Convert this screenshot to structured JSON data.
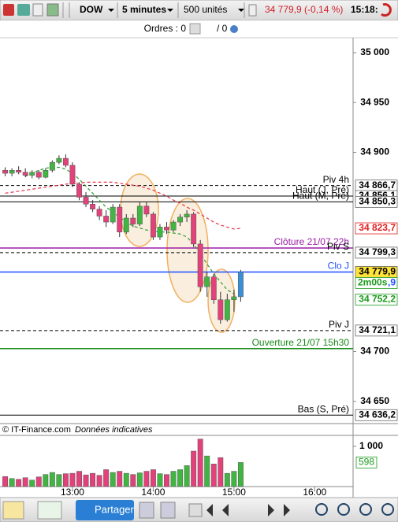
{
  "toolbar": {
    "symbol": "DOW",
    "interval": "5 minutes",
    "units": "500 unités",
    "quote": "34 779,9 (-0,14 %)",
    "time": "15:18:"
  },
  "orders": {
    "label": "Ordres : 0",
    "pending": "/ 0"
  },
  "chart_data": {
    "type": "candlestick",
    "open": [
      34882,
      34879,
      34882,
      34880,
      34877,
      34880,
      34875,
      34882,
      34890,
      34894,
      34887,
      34868,
      34855,
      34848,
      34843,
      34836,
      34830,
      34845,
      34820,
      34834,
      34828,
      34846,
      34838,
      34815,
      34825,
      34822,
      34830,
      34835,
      34838,
      34808,
      34765,
      34775,
      34752,
      34732,
      34752,
      34755
    ],
    "high": [
      34885,
      34884,
      34886,
      34884,
      34882,
      34882,
      34884,
      34892,
      34897,
      34898,
      34890,
      34870,
      34860,
      34852,
      34846,
      34842,
      34848,
      34848,
      34838,
      34838,
      34850,
      34850,
      34840,
      34828,
      34830,
      34832,
      34838,
      34842,
      34840,
      34812,
      34780,
      34778,
      34760,
      34758,
      34762,
      34782
    ],
    "low": [
      34876,
      34876,
      34878,
      34875,
      34874,
      34873,
      34874,
      34880,
      34888,
      34885,
      34865,
      34852,
      34845,
      34840,
      34832,
      34825,
      34828,
      34815,
      34818,
      34825,
      34826,
      34835,
      34812,
      34812,
      34818,
      34820,
      34826,
      34830,
      34805,
      34760,
      34755,
      34748,
      34728,
      34730,
      34740,
      34750
    ],
    "close": [
      34879,
      34882,
      34880,
      34877,
      34880,
      34875,
      34882,
      34890,
      34894,
      34887,
      34868,
      34855,
      34848,
      34843,
      34836,
      34830,
      34845,
      34820,
      34834,
      34828,
      34846,
      34838,
      34815,
      34825,
      34822,
      34830,
      34835,
      34838,
      34808,
      34765,
      34775,
      34752,
      34732,
      34752,
      34755,
      34779.9
    ],
    "up_color": "#41b541",
    "down_color": "#e2417a",
    "last_color": "#3a8fd8",
    "xlim": [
      -0.77,
      51.7
    ],
    "xticks": [
      {
        "value": 10,
        "label": "13:00"
      },
      {
        "value": 22,
        "label": "14:00"
      },
      {
        "value": 34,
        "label": "15:00"
      },
      {
        "value": 46,
        "label": "16:00"
      }
    ],
    "ylim": [
      34627.7,
      35015
    ],
    "yticks": [
      {
        "value": 35000,
        "label": "35 000"
      },
      {
        "value": 34950,
        "label": "34 950"
      },
      {
        "value": 34900,
        "label": "34 900"
      },
      {
        "value": 34700,
        "label": "34 700"
      },
      {
        "value": 34650,
        "label": "34 650"
      }
    ],
    "levels": [
      {
        "label": "Piv 4h",
        "value": 34866.7,
        "style": "dashed",
        "color": "#000000"
      },
      {
        "label": "Haut (J, Pré)",
        "value": 34856.1,
        "style": "solid",
        "color": "#000000"
      },
      {
        "label": "Haut (M, Pré)",
        "value": 34850.3,
        "style": "solid",
        "color": "#000000"
      },
      {
        "label": "Clôture 21/07 22h",
        "value": 34804,
        "style": "solid",
        "color": "#9b1fa8"
      },
      {
        "label": "Piv S",
        "value": 34799.3,
        "style": "dashed",
        "color": "#000000"
      },
      {
        "label": "Clo J",
        "value": 34779.9,
        "style": "solid",
        "color": "#1f4fff"
      },
      {
        "label": "Piv J",
        "value": 34721.1,
        "style": "dashed",
        "color": "#000000"
      },
      {
        "label": "Ouverture 21/07 15h30",
        "value": 34703,
        "style": "solid",
        "color": "#1a8a1a"
      },
      {
        "label": "Bas (S, Pré)",
        "value": 34636.2,
        "style": "solid",
        "color": "#000000"
      }
    ],
    "price_labels": [
      {
        "value": 34866.7,
        "label": "34 866,7",
        "bg": "#ffffff",
        "fg": "#000000"
      },
      {
        "value": 34856.1,
        "label": "34 856,1",
        "bg": "#ffffff",
        "fg": "#000000"
      },
      {
        "value": 34850.3,
        "label": "34 850,3",
        "bg": "#ffffff",
        "fg": "#000000"
      },
      {
        "value": 34823.7,
        "label": "34 823,7",
        "bg": "#ffffff",
        "fg": "#e02020"
      },
      {
        "value": 34799.3,
        "label": "34 799,3",
        "bg": "#ffffff",
        "fg": "#000000"
      },
      {
        "value": 34779.9,
        "label": "34 779,9",
        "bg": "#ffe23a",
        "fg": "#000000"
      },
      {
        "value": 34752.2,
        "label": "34 752,2",
        "bg": "#ffffff",
        "fg": "#1a9a1a"
      },
      {
        "value": 34721.1,
        "label": "34 721,1",
        "bg": "#ffffff",
        "fg": "#000000"
      },
      {
        "value": 34636.2,
        "label": "34 636,2",
        "bg": "#ffffff",
        "fg": "#000000"
      }
    ],
    "countdown": {
      "label": "2m00s",
      "suffix": ",9"
    },
    "averages": [
      {
        "color": "#2e9e2e",
        "values": [
          null,
          null,
          null,
          34876,
          34879,
          34882,
          34884,
          34885,
          34885,
          34883,
          34879,
          34873,
          34866,
          34859,
          34852,
          34845,
          34840,
          34835,
          34830,
          34826,
          34824,
          34822,
          34821,
          34820,
          34820,
          34819,
          34818,
          34815,
          34808,
          34798,
          34788,
          34778,
          34770,
          34762,
          34758,
          null
        ]
      },
      {
        "color": "#e8334a",
        "values": [
          34859,
          34860,
          34861,
          34862,
          34863,
          34864,
          34865,
          34866,
          34867,
          34868,
          34869,
          34869,
          34870,
          34870,
          34870,
          34870,
          34870,
          34869,
          34868,
          34867,
          34866,
          34864,
          34862,
          34859,
          34856,
          34852,
          34849,
          34845,
          34842,
          34838,
          34834,
          34830,
          34827,
          34825,
          34823,
          34823.7
        ]
      }
    ],
    "volume": {
      "values": [
        250,
        200,
        180,
        220,
        160,
        240,
        300,
        350,
        300,
        320,
        330,
        380,
        290,
        330,
        280,
        420,
        350,
        380,
        330,
        300,
        340,
        380,
        420,
        320,
        300,
        380,
        420,
        520,
        880,
        1180,
        760,
        560,
        720,
        330,
        380,
        598
      ],
      "ylim": [
        0,
        1270
      ],
      "yticks": [
        {
          "value": 1000,
          "label": "1 000"
        }
      ],
      "last_label": {
        "value": 598,
        "label": "598"
      }
    },
    "source": "© IT-Finance.com",
    "note": "Données indicatives"
  },
  "bottom": {
    "share": "Partager"
  }
}
